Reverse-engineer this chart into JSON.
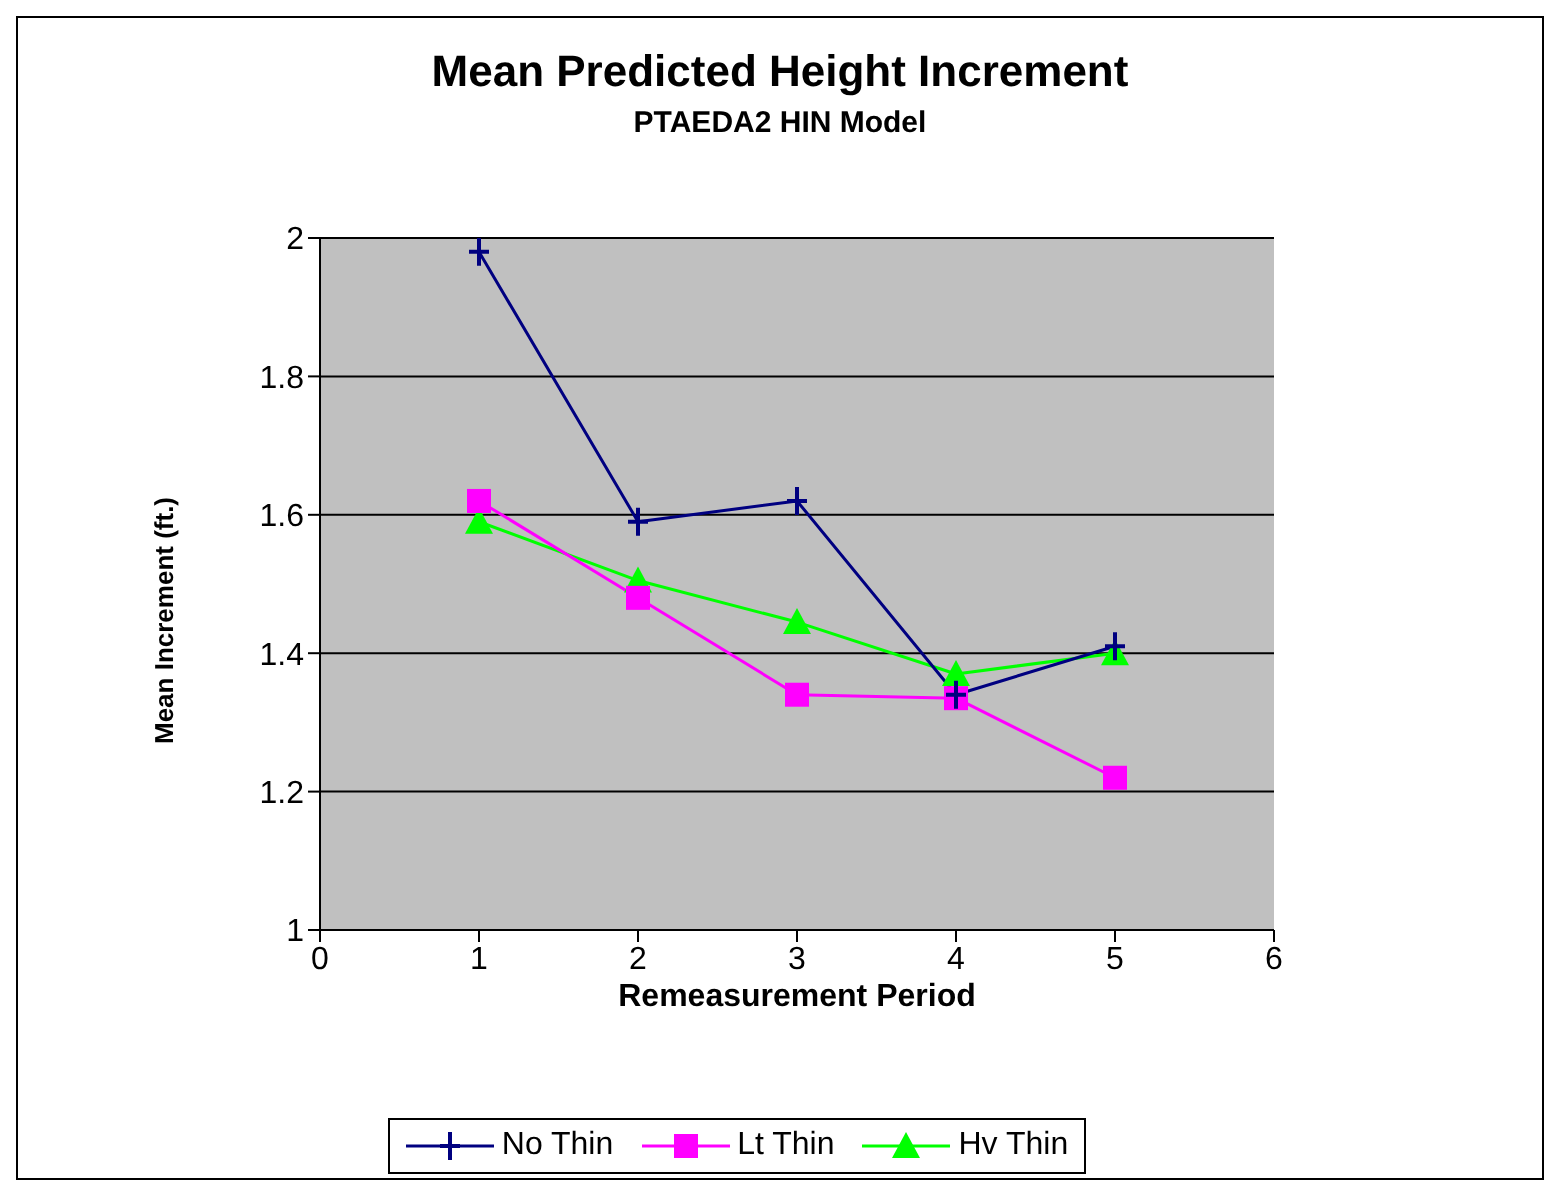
{
  "chart_data": {
    "type": "line",
    "title": "Mean Predicted Height Increment",
    "subtitle": "PTAEDA2 HIN Model",
    "xlabel": "Remeasurement Period",
    "ylabel": "Mean Increment (ft.)",
    "x": [
      1,
      2,
      3,
      4,
      5
    ],
    "series": [
      {
        "name": "No Thin",
        "color": "#000080",
        "marker": "cross",
        "values": [
          1.98,
          1.59,
          1.62,
          1.34,
          1.41
        ]
      },
      {
        "name": "Lt Thin",
        "color": "#ff00ff",
        "marker": "square",
        "values": [
          1.62,
          1.48,
          1.34,
          1.335,
          1.22
        ]
      },
      {
        "name": "Hv Thin",
        "color": "#00ff00",
        "marker": "triangle",
        "values": [
          1.59,
          1.505,
          1.445,
          1.37,
          1.4
        ]
      }
    ],
    "xlim": [
      0,
      6
    ],
    "xticks": [
      0,
      1,
      2,
      3,
      4,
      5,
      6
    ],
    "ylim": [
      1,
      2
    ],
    "yticks": [
      1,
      1.2,
      1.4,
      1.6,
      1.8,
      2
    ],
    "grid": "y",
    "legend": "bottom"
  }
}
